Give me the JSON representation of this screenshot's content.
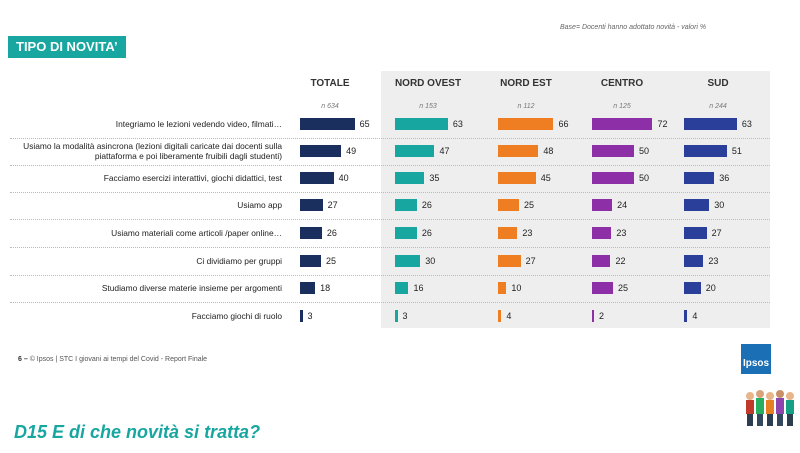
{
  "header": {
    "base_note": "Base= Docenti hanno adottato novità - valori %",
    "title": "TIPO DI NOVITA’"
  },
  "chart_data": {
    "type": "bar",
    "orientation": "horizontal",
    "groups": [
      {
        "name": "TOTALE",
        "n": "n 634",
        "color": "#1b2f5e"
      },
      {
        "name": "NORD OVEST",
        "n": "n 153",
        "color": "#17a6a0"
      },
      {
        "name": "NORD EST",
        "n": "n 112",
        "color": "#ef7d22"
      },
      {
        "name": "CENTRO",
        "n": "n 125",
        "color": "#8d2fa6"
      },
      {
        "name": "SUD",
        "n": "n 244",
        "color": "#2a3f9a"
      }
    ],
    "categories": [
      "Integriamo le lezioni vedendo video, filmati…",
      "Usiamo la modalità asincrona  (lezioni digitali caricate dai docenti sulla piattaforma e poi liberamente fruibili dagli studenti)",
      "Facciamo esercizi interattivi, giochi didattici, test",
      "Usiamo app",
      "Usiamo materiali come articoli /paper online…",
      "Ci dividiamo per gruppi",
      "Studiamo diverse materie insieme per argomenti",
      "Facciamo giochi di ruolo"
    ],
    "values": [
      [
        65,
        63,
        66,
        72,
        63
      ],
      [
        49,
        47,
        48,
        50,
        51
      ],
      [
        40,
        35,
        45,
        50,
        36
      ],
      [
        27,
        26,
        25,
        24,
        30
      ],
      [
        26,
        26,
        23,
        23,
        27
      ],
      [
        25,
        30,
        27,
        22,
        23
      ],
      [
        18,
        16,
        10,
        25,
        20
      ],
      [
        3,
        3,
        4,
        2,
        4
      ]
    ],
    "unit": "%"
  },
  "footer": {
    "page": "6 –",
    "text": "© Ipsos | STC I giovani ai tempi del Covid - Report Finale"
  },
  "question": "D15 E di che novità si tratta?",
  "logo_text": "Ipsos"
}
